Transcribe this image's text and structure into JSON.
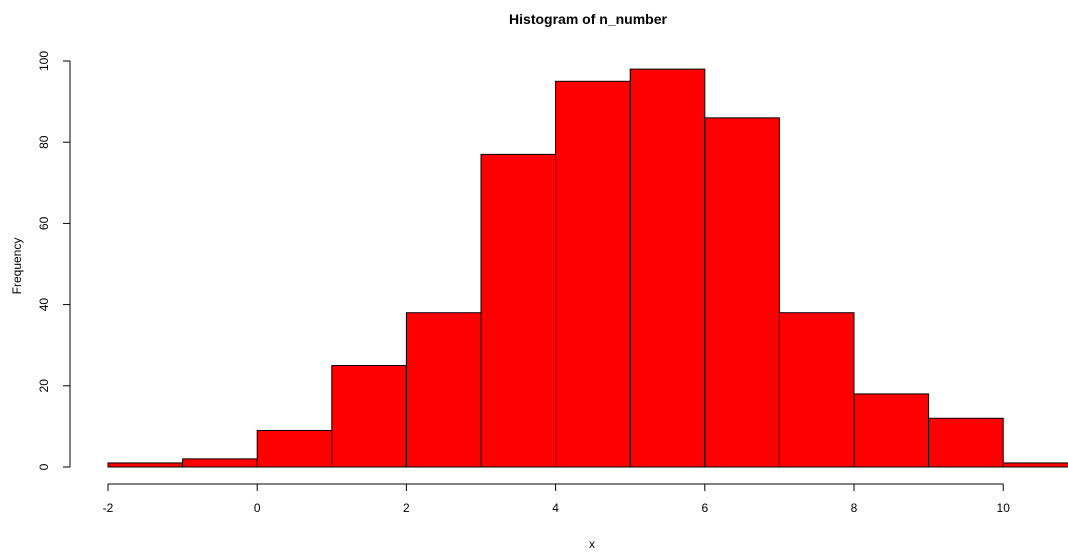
{
  "chart_data": {
    "type": "bar",
    "title": "Histogram of n_number",
    "xlabel": "x",
    "ylabel": "Frequency",
    "bin_edges": [
      -2,
      -1,
      0,
      1,
      2,
      3,
      4,
      5,
      6,
      7,
      8,
      9,
      10,
      11
    ],
    "values": [
      1,
      2,
      9,
      25,
      38,
      77,
      95,
      98,
      86,
      38,
      18,
      12,
      1
    ],
    "xlim": [
      -2,
      11
    ],
    "ylim": [
      0,
      100
    ],
    "x_ticks": [
      -2,
      0,
      2,
      4,
      6,
      8,
      10
    ],
    "y_ticks": [
      0,
      20,
      40,
      60,
      80,
      100
    ],
    "bar_color": "#ff0000",
    "bar_edge_color": "#000000",
    "grid": false
  }
}
